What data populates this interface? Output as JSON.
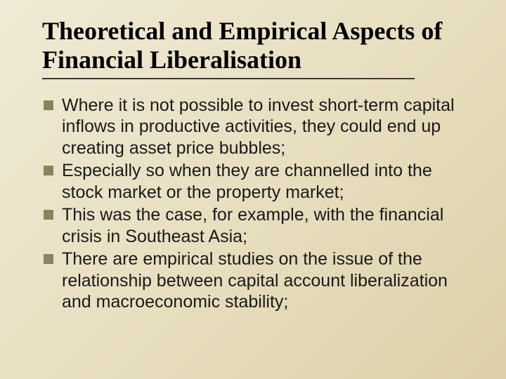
{
  "slide": {
    "title": "Theoretical and Empirical Aspects of Financial Liberalisation",
    "bullets": [
      "Where it is not possible to invest short-term capital inflows in productive activities, they could end up creating asset price bubbles;",
      "Especially so when they are channelled into the stock market or the property market;",
      "This was the case, for example, with the financial crisis in Southeast Asia;",
      "There are empirical studies on the issue of the relationship between capital account liberalization and macroeconomic stability;"
    ],
    "style": {
      "background_gradient": [
        "#f0ead6",
        "#e8dfc0",
        "#ddd0a8"
      ],
      "title_font": "Times New Roman",
      "title_fontsize": 36,
      "title_weight": "bold",
      "body_font": "Arial",
      "body_fontsize": 25,
      "bullet_marker_color": "#86865e",
      "bullet_marker_size": 14,
      "underline_color": "#3a3a3a",
      "underline_width": 530,
      "text_color": "#1a1a1a"
    }
  }
}
